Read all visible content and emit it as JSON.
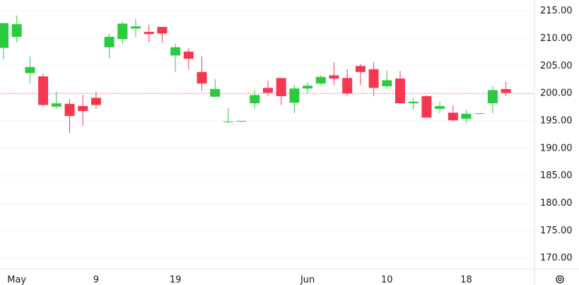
{
  "chart_data": {
    "type": "candlestick",
    "categories": [
      null,
      "May",
      null,
      null,
      null,
      null,
      null,
      "9",
      null,
      null,
      null,
      null,
      null,
      "19",
      null,
      null,
      null,
      null,
      null,
      null,
      null,
      null,
      null,
      "Jun",
      null,
      null,
      null,
      null,
      null,
      "10",
      null,
      null,
      null,
      null,
      null,
      "18",
      null,
      null,
      null
    ],
    "open": [
      208.3,
      210.3,
      203.7,
      203.1,
      197.6,
      198.1,
      197.7,
      199.2,
      208.4,
      209.9,
      211.8,
      211.2,
      212.1,
      206.9,
      207.6,
      203.9,
      199.4,
      194.8,
      194.9,
      198.2,
      201.0,
      202.8,
      198.3,
      200.9,
      201.8,
      203.3,
      202.8,
      205.0,
      204.4,
      201.3,
      202.7,
      198.2,
      199.5,
      197.2,
      196.5,
      195.4,
      196.3,
      198.2,
      200.8
    ],
    "high": [
      212.8,
      214.2,
      206.7,
      203.6,
      200.3,
      199.0,
      199.7,
      200.3,
      210.8,
      213.1,
      213.6,
      212.5,
      212.1,
      209.0,
      208.2,
      206.7,
      202.6,
      197.4,
      195.0,
      200.5,
      202.3,
      202.8,
      201.5,
      202.0,
      203.3,
      205.7,
      204.4,
      205.4,
      205.7,
      204.1,
      204.1,
      199.2,
      199.7,
      198.5,
      197.9,
      197.0,
      196.4,
      201.3,
      202.1
    ],
    "low": [
      206.2,
      209.3,
      201.8,
      197.7,
      197.2,
      192.8,
      194.1,
      197.2,
      206.4,
      209.0,
      210.3,
      209.3,
      209.3,
      203.9,
      204.4,
      200.5,
      199.4,
      194.7,
      194.8,
      197.2,
      199.5,
      197.9,
      196.4,
      200.0,
      201.4,
      201.5,
      199.6,
      201.5,
      199.5,
      200.8,
      198.2,
      197.0,
      195.6,
      196.4,
      194.9,
      194.6,
      196.3,
      196.4,
      199.5
    ],
    "close": [
      212.8,
      212.6,
      204.8,
      197.9,
      198.2,
      195.9,
      196.8,
      197.9,
      210.3,
      212.7,
      212.2,
      210.8,
      210.9,
      208.4,
      206.3,
      201.8,
      200.8,
      194.9,
      195.0,
      199.7,
      200.1,
      199.5,
      200.9,
      201.4,
      203.0,
      202.7,
      200.0,
      203.9,
      201.0,
      202.4,
      198.2,
      198.5,
      195.6,
      197.7,
      195.1,
      196.3,
      196.4,
      200.6,
      200.1
    ],
    "up_color": "#2bcb40",
    "down_color": "#f7374f",
    "price_line": 200.0,
    "price_line_color": "#f7374f",
    "ylim": [
      168.1,
      217.0
    ],
    "yticks": [
      {
        "value": 170,
        "label": "170.00"
      },
      {
        "value": 175,
        "label": "175.00"
      },
      {
        "value": 180,
        "label": "180.00"
      },
      {
        "value": 185,
        "label": "185.00"
      },
      {
        "value": 190,
        "label": "190.00"
      },
      {
        "value": 195,
        "label": "195.00"
      },
      {
        "value": 200,
        "label": "200.00"
      },
      {
        "value": 205,
        "label": "205.00"
      },
      {
        "value": 210,
        "label": "210.00"
      },
      {
        "value": 215,
        "label": "215.00"
      }
    ],
    "grid": true
  }
}
